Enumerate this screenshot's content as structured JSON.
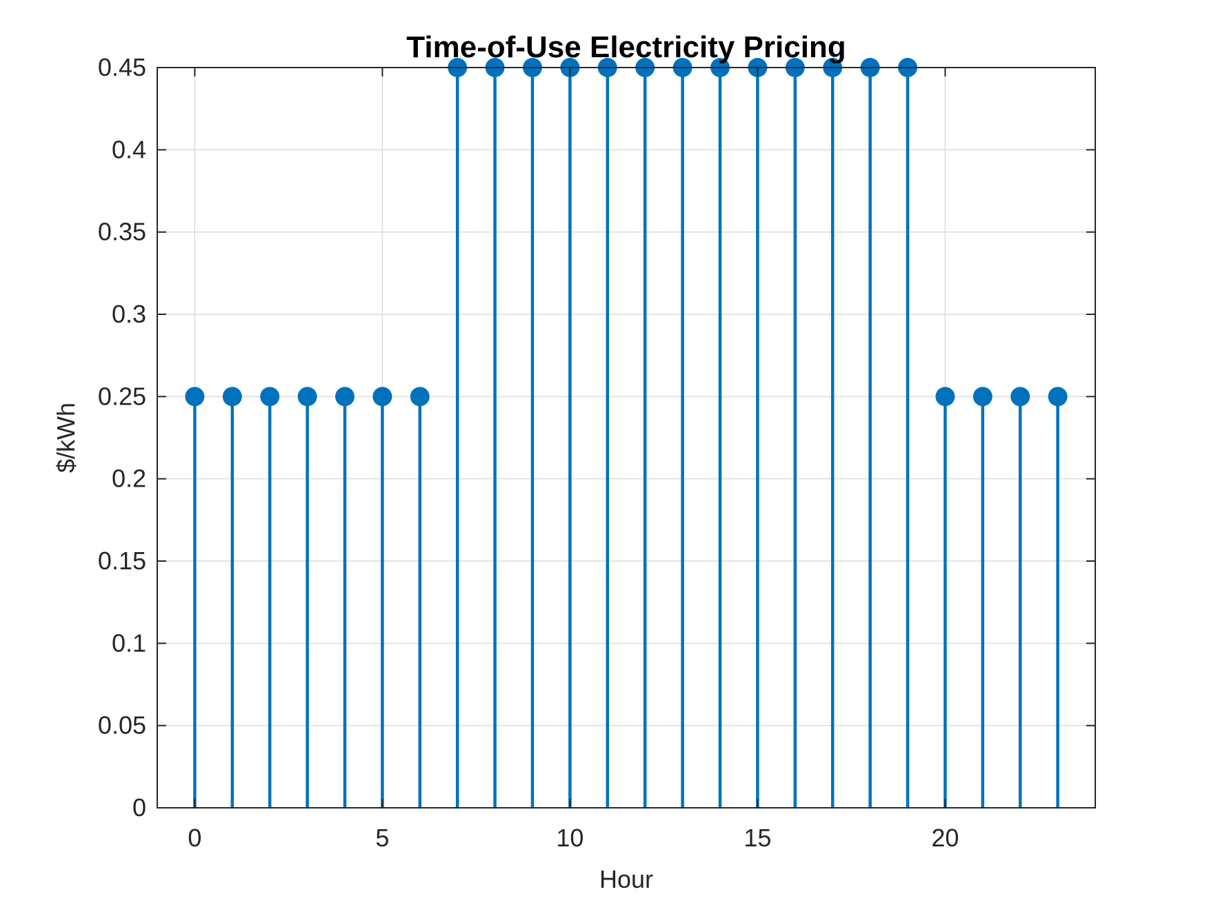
{
  "chart_data": {
    "type": "stem",
    "title": "Time-of-Use Electricity Pricing",
    "xlabel": "Hour",
    "ylabel": "$/kWh",
    "xlim": [
      -1,
      24
    ],
    "ylim": [
      0,
      0.45
    ],
    "xticks": [
      0,
      5,
      10,
      15,
      20
    ],
    "xtick_labels": [
      "0",
      "5",
      "10",
      "15",
      "20"
    ],
    "yticks": [
      0,
      0.05,
      0.1,
      0.15,
      0.2,
      0.25,
      0.3,
      0.35,
      0.4,
      0.45
    ],
    "ytick_labels": [
      "0",
      "0.05",
      "0.1",
      "0.15",
      "0.2",
      "0.25",
      "0.3",
      "0.35",
      "0.4",
      "0.45"
    ],
    "grid": true,
    "color": "#0072BD",
    "x": [
      0,
      1,
      2,
      3,
      4,
      5,
      6,
      7,
      8,
      9,
      10,
      11,
      12,
      13,
      14,
      15,
      16,
      17,
      18,
      19,
      20,
      21,
      22,
      23
    ],
    "y": [
      0.25,
      0.25,
      0.25,
      0.25,
      0.25,
      0.25,
      0.25,
      0.45,
      0.45,
      0.45,
      0.45,
      0.45,
      0.45,
      0.45,
      0.45,
      0.45,
      0.45,
      0.45,
      0.45,
      0.45,
      0.25,
      0.25,
      0.25,
      0.25
    ]
  }
}
